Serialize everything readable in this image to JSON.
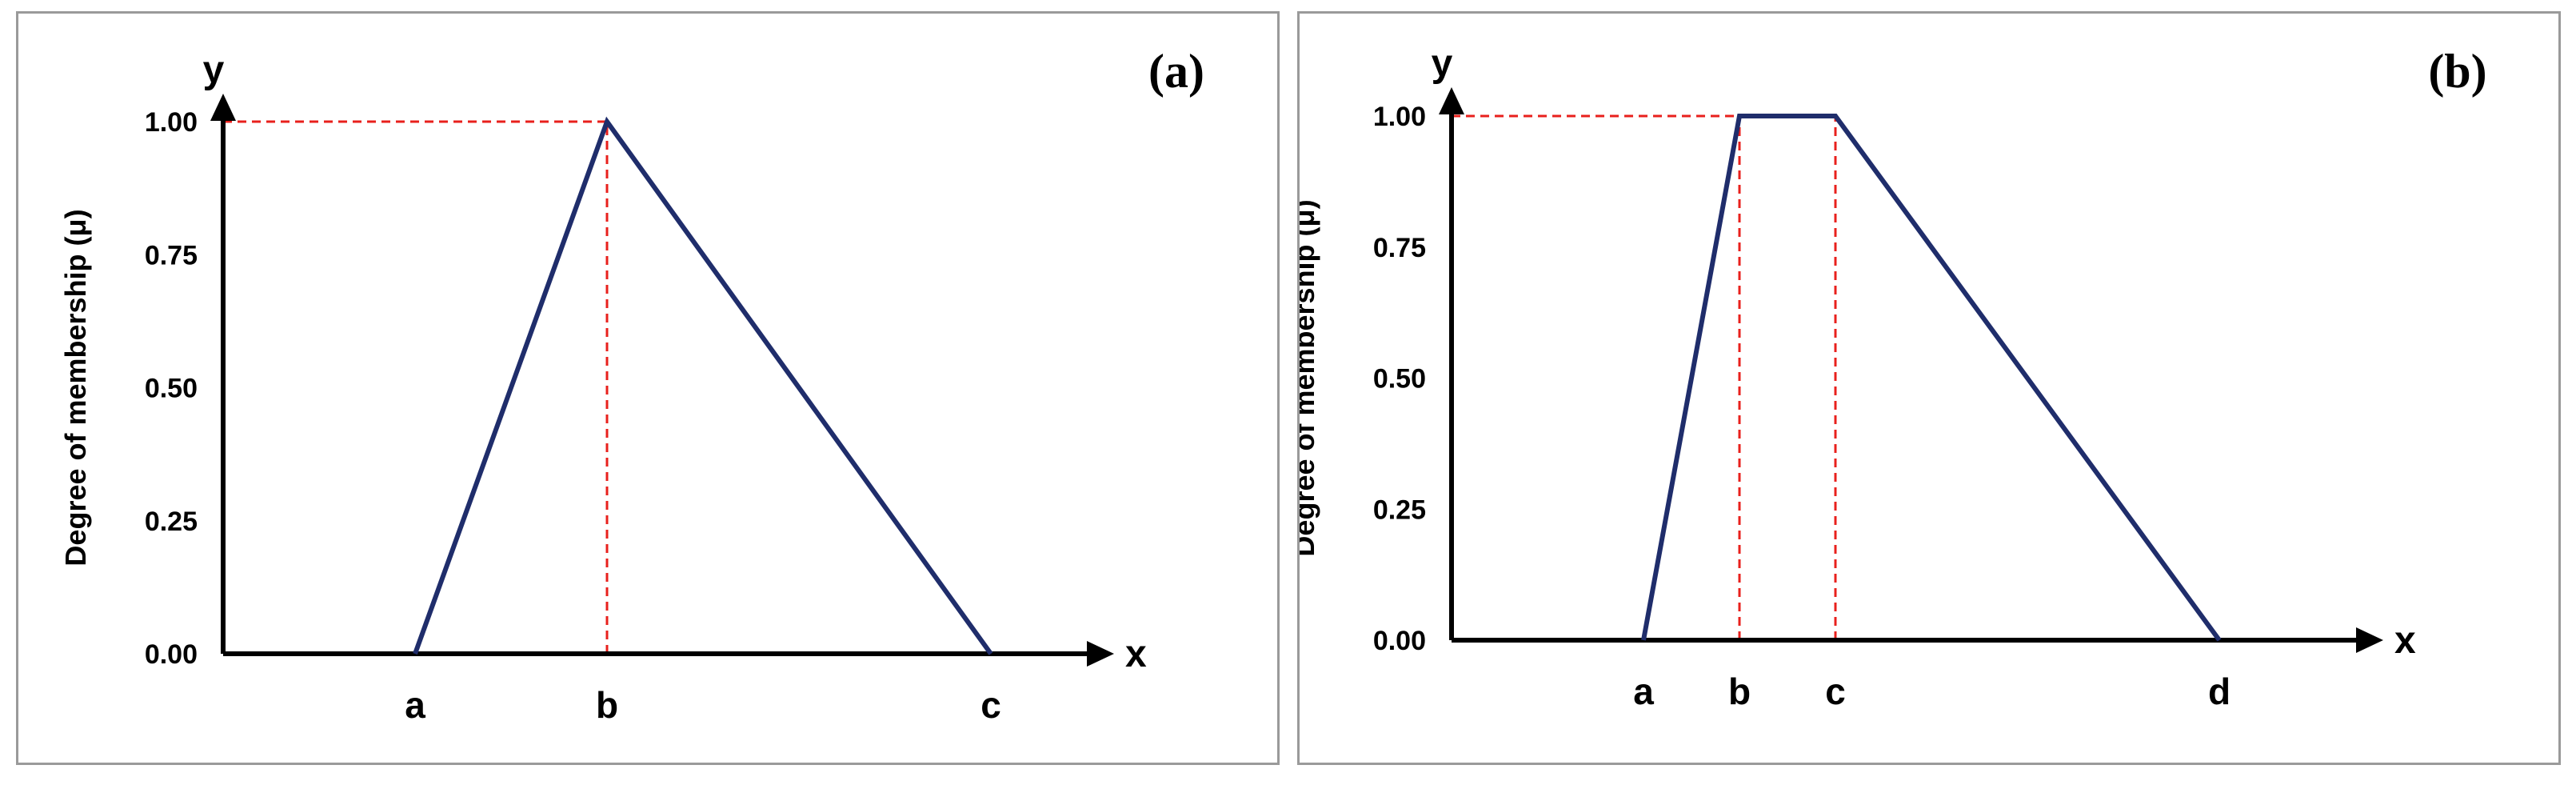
{
  "chart_data": [
    {
      "type": "line",
      "panel_label": "(a)",
      "x_axis_letter": "x",
      "y_axis_letter": "y",
      "ylabel": "Degree of membership (μ)",
      "yticks": [
        "0.00",
        "0.25",
        "0.50",
        "0.75",
        "1.00"
      ],
      "ylim": [
        0,
        1
      ],
      "x_points": [
        {
          "name": "a",
          "x": 1.0
        },
        {
          "name": "b",
          "x": 2.0
        },
        {
          "name": "c",
          "x": 4.0
        }
      ],
      "xlim": [
        0,
        4.6
      ],
      "series": [
        {
          "values_x": [
            1.0,
            2.0,
            4.0
          ],
          "values_y": [
            0,
            1,
            0
          ]
        }
      ],
      "guides": [
        {
          "x": [
            0,
            2.0
          ],
          "y": [
            1,
            1
          ]
        },
        {
          "x": [
            2.0,
            2.0
          ],
          "y": [
            0,
            1
          ]
        }
      ],
      "colors": {
        "series": "#1f2d6b",
        "guides": "#e8201c",
        "axes": "#000000"
      }
    },
    {
      "type": "line",
      "panel_label": "(b)",
      "x_axis_letter": "x",
      "y_axis_letter": "y",
      "ylabel": "Degree of membership (μ)",
      "yticks": [
        "0.00",
        "0.25",
        "0.50",
        "0.75",
        "1.00"
      ],
      "ylim": [
        0,
        1
      ],
      "x_points": [
        {
          "name": "a",
          "x": 1.0
        },
        {
          "name": "b",
          "x": 1.5
        },
        {
          "name": "c",
          "x": 2.0
        },
        {
          "name": "d",
          "x": 4.0
        }
      ],
      "xlim": [
        0,
        4.6
      ],
      "series": [
        {
          "values_x": [
            1.0,
            1.5,
            2.0,
            4.0
          ],
          "values_y": [
            0,
            1,
            1,
            0
          ]
        }
      ],
      "guides": [
        {
          "x": [
            0,
            1.5
          ],
          "y": [
            1,
            1
          ]
        },
        {
          "x": [
            1.5,
            1.5
          ],
          "y": [
            0,
            1
          ]
        },
        {
          "x": [
            2.0,
            2.0
          ],
          "y": [
            0,
            1
          ]
        }
      ],
      "colors": {
        "series": "#1f2d6b",
        "guides": "#e8201c",
        "axes": "#000000"
      }
    }
  ]
}
